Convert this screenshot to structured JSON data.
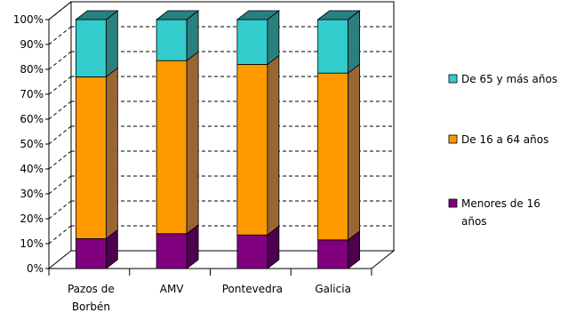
{
  "chart_data": {
    "type": "bar",
    "stacked": true,
    "percent": true,
    "categories": [
      [
        "Pazos de",
        "Borbén"
      ],
      [
        "AMV"
      ],
      [
        "Pontevedra"
      ],
      [
        "Galicia"
      ]
    ],
    "series": [
      {
        "name": "Menores de 16 años",
        "label_lines": [
          "Menores de 16",
          "años"
        ],
        "values": [
          12,
          14,
          13.5,
          11.5
        ],
        "color": "#800080",
        "side": "#4d004d"
      },
      {
        "name": "De 16 a 64 años",
        "label_lines": [
          "De 16 a 64 años"
        ],
        "values": [
          65,
          69.5,
          68.5,
          67
        ],
        "color": "#ff9900",
        "side": "#996633"
      },
      {
        "name": "De 65 y más años",
        "label_lines": [
          "De 65 y más años"
        ],
        "values": [
          23,
          16.5,
          18,
          21.5
        ],
        "color": "#33cccc",
        "side": "#2a7f7f"
      }
    ],
    "ylim": [
      0,
      100
    ],
    "yticks": [
      "0%",
      "10%",
      "20%",
      "30%",
      "40%",
      "50%",
      "60%",
      "70%",
      "80%",
      "90%",
      "100%"
    ],
    "grid": true,
    "legend_position": "right",
    "legend_order": [
      2,
      1,
      0
    ]
  }
}
